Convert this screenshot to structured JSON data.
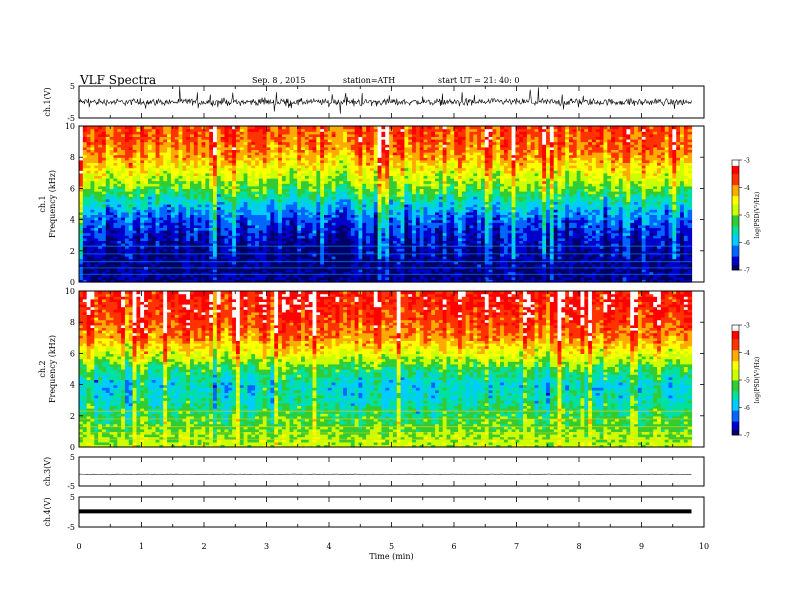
{
  "header": {
    "title": "VLF  Spectra",
    "date": "Sep. 8  , 2015",
    "station": "station=ATH",
    "start_ut": "start  UT  =   21: 40: 0"
  },
  "chart_data": [
    {
      "type": "line",
      "panel": "ch1-waveform",
      "ylabel": "ch.1(V)",
      "ylim": [
        -5,
        5
      ],
      "yticks": [
        "5",
        "-5"
      ],
      "xlim": [
        0,
        10
      ],
      "series": [
        {
          "x_range": [
            0,
            9.8
          ],
          "baseline": 0,
          "amplitude": "noisy ±1–4 V bursts"
        }
      ],
      "color": "#000000"
    },
    {
      "type": "heatmap",
      "panel": "ch1-spectrogram",
      "ylabel": "ch.1\nFrequency  (kHz)",
      "ylim": [
        0,
        10
      ],
      "yticks": [
        "0",
        "2",
        "4",
        "6",
        "8",
        "10"
      ],
      "xlim": [
        0,
        10
      ],
      "data_x_range": [
        0,
        9.8
      ],
      "colorbar": {
        "label": "log(PSD(V²/Hz)",
        "range": [
          -7,
          -3
        ],
        "ticks": [
          "-3",
          "-4",
          "-5",
          "-6",
          "-7"
        ]
      },
      "profile_log_psd_by_freq_khz": [
        [
          0,
          -6.8
        ],
        [
          1,
          -6.9
        ],
        [
          2,
          -6.8
        ],
        [
          3,
          -6.6
        ],
        [
          4,
          -6.3
        ],
        [
          5,
          -5.8
        ],
        [
          6,
          -5.1
        ],
        [
          7,
          -4.6
        ],
        [
          8,
          -4.1
        ],
        [
          9,
          -3.8
        ],
        [
          10,
          -3.7
        ]
      ]
    },
    {
      "type": "heatmap",
      "panel": "ch2-spectrogram",
      "ylabel": "ch.2\nFrequency  (kHz)",
      "ylim": [
        0,
        10
      ],
      "yticks": [
        "0",
        "2",
        "4",
        "6",
        "8",
        "10"
      ],
      "xlim": [
        0,
        10
      ],
      "data_x_range": [
        0,
        9.8
      ],
      "colorbar": {
        "label": "log(PSD(V²/Hz)",
        "range": [
          -7,
          -3
        ],
        "ticks": [
          "-3",
          "-4",
          "-5",
          "-6",
          "-7"
        ]
      },
      "profile_log_psd_by_freq_khz": [
        [
          0,
          -4.8
        ],
        [
          1,
          -5.0
        ],
        [
          2,
          -5.3
        ],
        [
          3,
          -5.6
        ],
        [
          4,
          -5.8
        ],
        [
          5,
          -5.3
        ],
        [
          6,
          -4.6
        ],
        [
          7,
          -4.0
        ],
        [
          8,
          -3.7
        ],
        [
          9,
          -3.5
        ],
        [
          10,
          -3.4
        ]
      ]
    },
    {
      "type": "line",
      "panel": "ch3-waveform",
      "ylabel": "ch.3(V)",
      "ylim": [
        -5,
        5
      ],
      "yticks": [
        "5",
        "-5"
      ],
      "xlim": [
        0,
        10
      ],
      "series": [
        {
          "x_range": [
            0,
            9.8
          ],
          "value": -1.0
        }
      ],
      "color": "#555555"
    },
    {
      "type": "line",
      "panel": "ch4-waveform",
      "ylabel": "ch.4(V)",
      "ylim": [
        -5,
        5
      ],
      "yticks": [
        "5",
        "-5"
      ],
      "xlim": [
        0,
        10
      ],
      "series": [
        {
          "x_range": [
            0,
            9.8
          ],
          "value": 0.2
        }
      ],
      "color": "#000000"
    }
  ],
  "xaxis": {
    "label": "Time  (min)",
    "ticks": [
      "0",
      "1",
      "2",
      "3",
      "4",
      "5",
      "6",
      "7",
      "8",
      "9",
      "10"
    ]
  },
  "colormap": [
    "#000066",
    "#0000cc",
    "#0066ff",
    "#00ccff",
    "#00e0a0",
    "#33cc33",
    "#ccff00",
    "#ffff00",
    "#ffaa00",
    "#ff3300",
    "#ff0000",
    "#ffffff"
  ]
}
